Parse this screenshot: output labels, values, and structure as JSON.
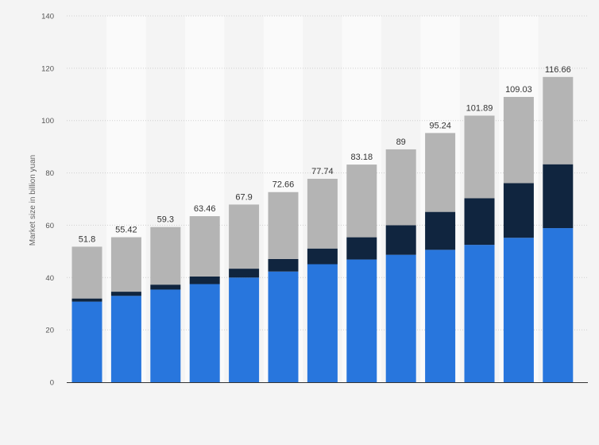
{
  "chart_data": {
    "type": "bar",
    "stacked": true,
    "title": "",
    "xlabel": "",
    "ylabel": "Market size in billion yuan",
    "ylim": [
      0,
      140
    ],
    "yticks": [
      0,
      20,
      40,
      60,
      80,
      100,
      120,
      140
    ],
    "grid": true,
    "legend": "none",
    "categories": [
      "",
      "",
      "",
      "",
      "",
      "",
      "",
      "",
      "",
      "",
      "",
      "",
      ""
    ],
    "series": [
      {
        "color": "#2876dd",
        "values": [
          30.8,
          33.0,
          35.4,
          37.5,
          40.0,
          42.3,
          45.1,
          46.9,
          48.7,
          50.6,
          52.5,
          55.2,
          58.9
        ]
      },
      {
        "color": "#10253f",
        "values": [
          1.2,
          1.6,
          1.9,
          2.9,
          3.4,
          4.8,
          6.0,
          8.5,
          11.3,
          14.5,
          17.8,
          20.9,
          24.4
        ]
      },
      {
        "color": "#b4b4b4",
        "values": [
          19.8,
          20.82,
          22.0,
          23.06,
          24.5,
          25.56,
          26.64,
          27.78,
          29.0,
          30.14,
          31.59,
          32.93,
          33.36
        ]
      }
    ],
    "totals": [
      "51.8",
      "55.42",
      "59.3",
      "63.46",
      "67.9",
      "72.66",
      "77.74",
      "83.18",
      "89",
      "95.24",
      "101.89",
      "109.03",
      "116.66"
    ]
  }
}
